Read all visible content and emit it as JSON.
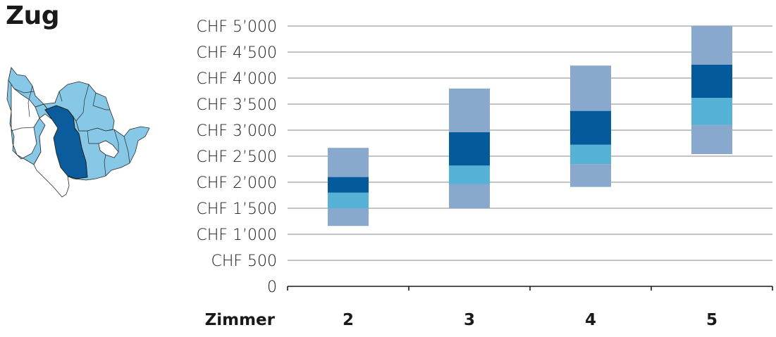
{
  "title": "Zug",
  "colors": {
    "outer": "#88a8cd",
    "dark": "#045a9a",
    "light": "#56b1d6",
    "map_fill": "#86c8e6",
    "map_highlight": "#0a5c9c",
    "grid": "#8a8a8a",
    "text": "#1a1a1a"
  },
  "map": {
    "icon": "canton-zug-map-icon"
  },
  "chart_data": {
    "type": "bar",
    "subtype": "floating-range-bands",
    "xlabel": "Zimmer",
    "ylabel": "",
    "categories": [
      "2",
      "3",
      "4",
      "5"
    ],
    "ylim": [
      0,
      5000
    ],
    "yticks": [
      0,
      500,
      1000,
      1500,
      2000,
      2500,
      3000,
      3500,
      4000,
      4500,
      5000
    ],
    "ytick_labels": [
      "0",
      "CHF    500",
      "CHF 1’000",
      "CHF 1’500",
      "CHF 2’000",
      "CHF 2’500",
      "CHF 3’000",
      "CHF 3’500",
      "CHF 4’000",
      "CHF 4’500",
      "CHF 5’000"
    ],
    "grid": true,
    "bars": [
      {
        "category": "2",
        "bands": [
          1160,
          1500,
          1800,
          2100,
          2660
        ]
      },
      {
        "category": "3",
        "bands": [
          1500,
          1960,
          2320,
          2960,
          3800
        ]
      },
      {
        "category": "4",
        "bands": [
          1910,
          2350,
          2720,
          3370,
          4240
        ]
      },
      {
        "category": "5",
        "bands": [
          2540,
          3100,
          3620,
          4260,
          5000
        ]
      }
    ]
  }
}
